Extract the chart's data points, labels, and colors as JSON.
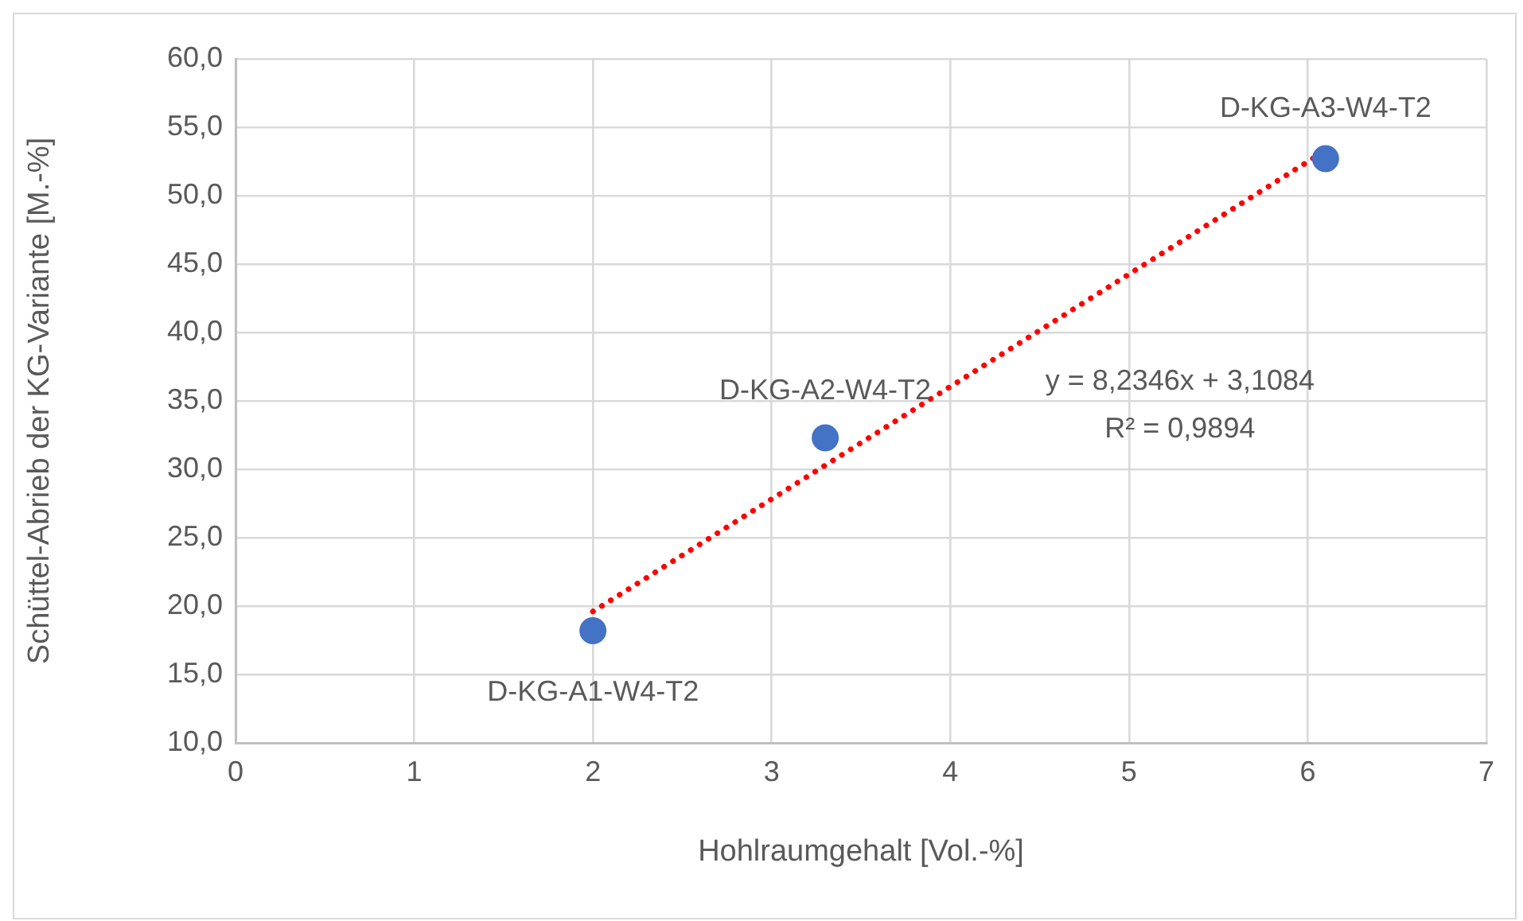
{
  "chart_data": {
    "type": "scatter",
    "xlabel": "Hohlraumgehalt [Vol.-%]",
    "ylabel": "Schüttel-Abrieb der KG-Variante [M.-%]",
    "xlim": [
      0,
      7
    ],
    "xticks": [
      0,
      1,
      2,
      3,
      4,
      5,
      6,
      7
    ],
    "ylim": [
      10,
      60
    ],
    "yticks": [
      {
        "value": 10,
        "label": "10,0"
      },
      {
        "value": 15,
        "label": "15,0"
      },
      {
        "value": 20,
        "label": "20,0"
      },
      {
        "value": 25,
        "label": "25,0"
      },
      {
        "value": 30,
        "label": "30,0"
      },
      {
        "value": 35,
        "label": "35,0"
      },
      {
        "value": 40,
        "label": "40,0"
      },
      {
        "value": 45,
        "label": "45,0"
      },
      {
        "value": 50,
        "label": "50,0"
      },
      {
        "value": 55,
        "label": "55,0"
      },
      {
        "value": 60,
        "label": "60,0"
      }
    ],
    "grid": true,
    "legend": false,
    "marker": "circle",
    "series": [
      {
        "type": "scatter",
        "color": "#4472c4",
        "x": [
          2,
          3.3,
          6.1
        ],
        "values": [
          18.2,
          32.3,
          52.7
        ]
      },
      {
        "type": "line",
        "color": "#ff0000",
        "line_style": "dotted",
        "marker": "none",
        "x": [
          2,
          6.1
        ],
        "values": [
          19.6,
          53.3
        ]
      }
    ],
    "annotations": [
      {
        "text": "D-KG-A1-W4-T2",
        "x": 2,
        "y": 18.2
      },
      {
        "text": "D-KG-A2-W4-T2",
        "x": 3.3,
        "y": 32.3
      },
      {
        "text": "D-KG-A3-W4-T2",
        "x": 6.1,
        "y": 52.7
      },
      "y = 8,2346x + 3,1084",
      "R² = 0,9894"
    ]
  }
}
